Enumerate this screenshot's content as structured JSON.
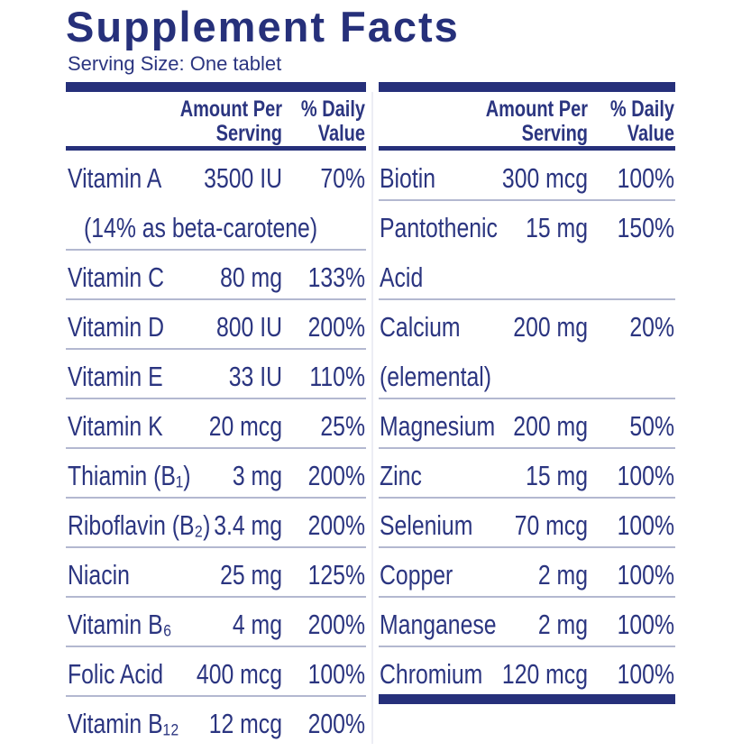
{
  "title": "Supplement Facts",
  "serving_size": "Serving Size: One tablet",
  "left": {
    "header": {
      "amount": [
        "Amount Per",
        "Serving"
      ],
      "dv": [
        "% Daily",
        "Value"
      ]
    },
    "rows": [
      {
        "name": [
          "Vitamin A"
        ],
        "amount": "3500 IU",
        "dv": "70%",
        "note": "(14% as beta-carotene)"
      },
      {
        "name": [
          "Vitamin C"
        ],
        "amount": "80 mg",
        "dv": "133%"
      },
      {
        "name": [
          "Vitamin D"
        ],
        "amount": "800 IU",
        "dv": "200%"
      },
      {
        "name": [
          "Vitamin E"
        ],
        "amount": "33 IU",
        "dv": "110%"
      },
      {
        "name": [
          "Vitamin K"
        ],
        "amount": "20 mcg",
        "dv": "25%"
      },
      {
        "name": [
          "Thiamin (B₁)"
        ],
        "amount": "3 mg",
        "dv": "200%"
      },
      {
        "name": [
          "Riboflavin (B₂)"
        ],
        "amount": "3.4 mg",
        "dv": "200%"
      },
      {
        "name": [
          "Niacin"
        ],
        "amount": "25 mg",
        "dv": "125%"
      },
      {
        "name": [
          "Vitamin B₆"
        ],
        "amount": "4 mg",
        "dv": "200%"
      },
      {
        "name": [
          "Folic Acid"
        ],
        "amount": "400 mcg",
        "dv": "100%"
      },
      {
        "name": [
          "Vitamin B₁₂"
        ],
        "amount": "12 mcg",
        "dv": "200%"
      }
    ]
  },
  "right": {
    "header": {
      "amount": [
        "Amount Per",
        "Serving"
      ],
      "dv": [
        "% Daily",
        "Value"
      ]
    },
    "rows": [
      {
        "name": [
          "Biotin"
        ],
        "amount": "300 mcg",
        "dv": "100%"
      },
      {
        "name": [
          "Pantothenic",
          "Acid"
        ],
        "amount": "15 mg",
        "dv": "150%"
      },
      {
        "name": [
          "Calcium",
          "(elemental)"
        ],
        "amount": "200 mg",
        "dv": "20%"
      },
      {
        "name": [
          "Magnesium"
        ],
        "amount": "200 mg",
        "dv": "50%"
      },
      {
        "name": [
          "Zinc"
        ],
        "amount": "15 mg",
        "dv": "100%"
      },
      {
        "name": [
          "Selenium"
        ],
        "amount": "70 mcg",
        "dv": "100%"
      },
      {
        "name": [
          "Copper"
        ],
        "amount": "2 mg",
        "dv": "100%"
      },
      {
        "name": [
          "Manganese"
        ],
        "amount": "2 mg",
        "dv": "100%"
      },
      {
        "name": [
          "Chromium"
        ],
        "amount": "120 mcg",
        "dv": "100%"
      }
    ]
  }
}
